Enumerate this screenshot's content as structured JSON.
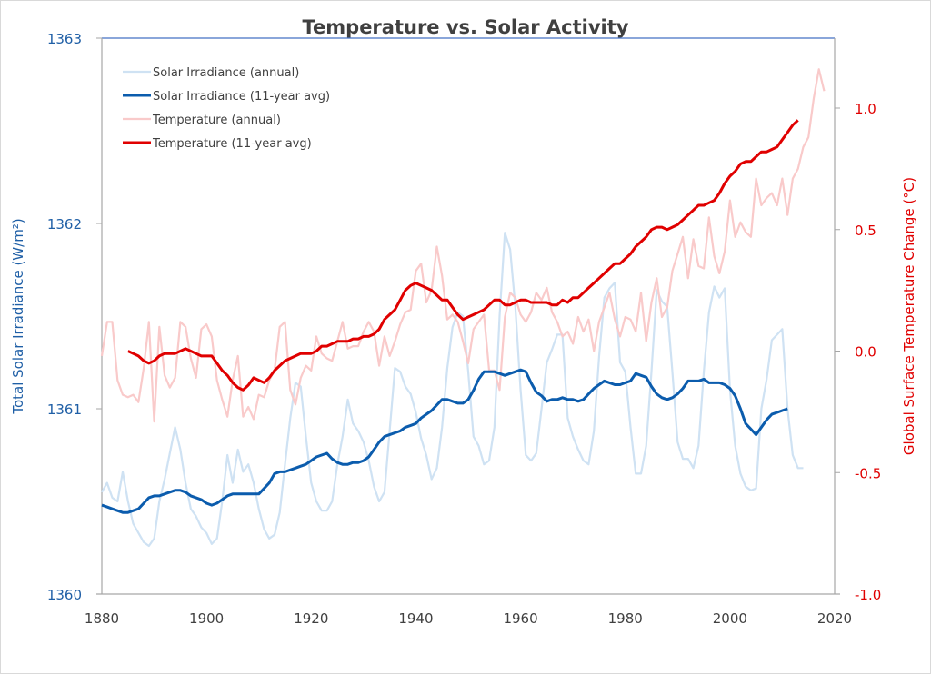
{
  "chart_data": {
    "type": "line",
    "title": "Temperature vs. Solar Activity",
    "xlabel": "",
    "ylabel_left": "Total Solar Irradiance (W/m²)",
    "ylabel_right": "Global Surface Temperature Change (°C)",
    "xlim": [
      1880,
      2020
    ],
    "ylim_left": [
      1360,
      1363
    ],
    "ylim_right": [
      -1.0,
      1.25
    ],
    "x_ticks": [
      "1880",
      "1900",
      "1920",
      "1940",
      "1960",
      "1980",
      "2000",
      "2020"
    ],
    "y_ticks_left": [
      "1360",
      "1361",
      "1362",
      "1363"
    ],
    "y_ticks_right": [
      "-1.0",
      "-0.5",
      "0.0",
      "0.5",
      "1.0"
    ],
    "grid": false,
    "legend_position": "top-left",
    "colors": {
      "solar_annual": "#cfe2f3",
      "solar_avg": "#0b5cad",
      "temp_annual": "#f9caca",
      "temp_avg": "#e00000",
      "left_axis_text": "#1f5fa6",
      "right_axis_text": "#e00000",
      "title_text": "#404040",
      "top_border": "#4472c4"
    },
    "series": [
      {
        "name": "Solar Irradiance (annual)",
        "axis": "left",
        "start_year": 1880,
        "values": [
          1360.55,
          1360.6,
          1360.52,
          1360.5,
          1360.66,
          1360.5,
          1360.38,
          1360.33,
          1360.28,
          1360.26,
          1360.3,
          1360.5,
          1360.62,
          1360.76,
          1360.9,
          1360.78,
          1360.6,
          1360.46,
          1360.42,
          1360.36,
          1360.33,
          1360.27,
          1360.3,
          1360.5,
          1360.75,
          1360.6,
          1360.78,
          1360.66,
          1360.7,
          1360.6,
          1360.46,
          1360.35,
          1360.3,
          1360.32,
          1360.44,
          1360.7,
          1360.95,
          1361.14,
          1361.12,
          1360.85,
          1360.6,
          1360.5,
          1360.45,
          1360.45,
          1360.5,
          1360.7,
          1360.85,
          1361.05,
          1360.92,
          1360.88,
          1360.82,
          1360.72,
          1360.58,
          1360.5,
          1360.55,
          1360.88,
          1361.22,
          1361.2,
          1361.12,
          1361.08,
          1360.98,
          1360.84,
          1360.75,
          1360.62,
          1360.68,
          1360.9,
          1361.22,
          1361.44,
          1361.52,
          1361.5,
          1361.2,
          1360.85,
          1360.8,
          1360.7,
          1360.72,
          1360.9,
          1361.5,
          1361.95,
          1361.86,
          1361.55,
          1361.1,
          1360.75,
          1360.72,
          1360.76,
          1361.0,
          1361.25,
          1361.32,
          1361.4,
          1361.4,
          1360.95,
          1360.85,
          1360.78,
          1360.72,
          1360.7,
          1360.88,
          1361.28,
          1361.6,
          1361.65,
          1361.68,
          1361.25,
          1361.2,
          1360.9,
          1360.65,
          1360.65,
          1360.8,
          1361.2,
          1361.64,
          1361.58,
          1361.55,
          1361.2,
          1360.82,
          1360.73,
          1360.73,
          1360.68,
          1360.8,
          1361.2,
          1361.52,
          1361.66,
          1361.6,
          1361.65,
          1361.1,
          1360.8,
          1360.65,
          1360.58,
          1360.56,
          1360.57,
          1361.0,
          1361.16,
          1361.37,
          1361.4,
          1361.43,
          1361.0,
          1360.75,
          1360.68,
          1360.68
        ]
      },
      {
        "name": "Solar Irradiance (11-year avg)",
        "axis": "left",
        "start_year": 1880,
        "values": [
          1360.48,
          1360.47,
          1360.46,
          1360.45,
          1360.44,
          1360.44,
          1360.45,
          1360.46,
          1360.49,
          1360.52,
          1360.53,
          1360.53,
          1360.54,
          1360.55,
          1360.56,
          1360.56,
          1360.55,
          1360.53,
          1360.52,
          1360.51,
          1360.49,
          1360.48,
          1360.49,
          1360.51,
          1360.53,
          1360.54,
          1360.54,
          1360.54,
          1360.54,
          1360.54,
          1360.54,
          1360.57,
          1360.6,
          1360.65,
          1360.66,
          1360.66,
          1360.67,
          1360.68,
          1360.69,
          1360.7,
          1360.72,
          1360.74,
          1360.75,
          1360.76,
          1360.73,
          1360.71,
          1360.7,
          1360.7,
          1360.71,
          1360.71,
          1360.72,
          1360.74,
          1360.78,
          1360.82,
          1360.85,
          1360.86,
          1360.87,
          1360.88,
          1360.9,
          1360.91,
          1360.92,
          1360.95,
          1360.97,
          1360.99,
          1361.02,
          1361.05,
          1361.05,
          1361.04,
          1361.03,
          1361.03,
          1361.05,
          1361.1,
          1361.16,
          1361.2,
          1361.2,
          1361.2,
          1361.19,
          1361.18,
          1361.19,
          1361.2,
          1361.21,
          1361.2,
          1361.14,
          1361.09,
          1361.07,
          1361.04,
          1361.05,
          1361.05,
          1361.06,
          1361.05,
          1361.05,
          1361.04,
          1361.05,
          1361.08,
          1361.11,
          1361.13,
          1361.15,
          1361.14,
          1361.13,
          1361.13,
          1361.14,
          1361.15,
          1361.19,
          1361.18,
          1361.17,
          1361.12,
          1361.08,
          1361.06,
          1361.05,
          1361.06,
          1361.08,
          1361.11,
          1361.15,
          1361.15,
          1361.15,
          1361.16,
          1361.14,
          1361.14,
          1361.14,
          1361.13,
          1361.11,
          1361.07,
          1361.0,
          1360.92,
          1360.89,
          1360.86,
          1360.9,
          1360.94,
          1360.97,
          1360.98,
          1360.99,
          1361.0
        ]
      },
      {
        "name": "Temperature (annual)",
        "axis": "right",
        "start_year": 1880,
        "values": [
          -0.02,
          0.12,
          0.12,
          -0.12,
          -0.18,
          -0.19,
          -0.18,
          -0.21,
          -0.07,
          0.12,
          -0.29,
          0.1,
          -0.1,
          -0.15,
          -0.11,
          0.12,
          0.1,
          -0.03,
          -0.11,
          0.09,
          0.11,
          0.06,
          -0.12,
          -0.2,
          -0.27,
          -0.12,
          -0.02,
          -0.27,
          -0.23,
          -0.28,
          -0.18,
          -0.19,
          -0.12,
          -0.08,
          0.1,
          0.12,
          -0.16,
          -0.22,
          -0.11,
          -0.06,
          -0.08,
          0.06,
          -0.01,
          -0.03,
          -0.04,
          0.04,
          0.12,
          0.01,
          0.02,
          0.02,
          0.08,
          0.12,
          0.08,
          -0.06,
          0.06,
          -0.02,
          0.04,
          0.11,
          0.16,
          0.17,
          0.33,
          0.36,
          0.2,
          0.25,
          0.43,
          0.31,
          0.13,
          0.15,
          0.12,
          0.04,
          -0.05,
          0.09,
          0.12,
          0.15,
          -0.08,
          -0.08,
          -0.16,
          0.14,
          0.24,
          0.22,
          0.15,
          0.12,
          0.16,
          0.24,
          0.21,
          0.26,
          0.16,
          0.12,
          0.06,
          0.08,
          0.03,
          0.14,
          0.08,
          0.13,
          0.0,
          0.12,
          0.18,
          0.24,
          0.13,
          0.06,
          0.14,
          0.13,
          0.08,
          0.24,
          0.04,
          0.2,
          0.3,
          0.14,
          0.18,
          0.33,
          0.4,
          0.47,
          0.3,
          0.46,
          0.35,
          0.34,
          0.55,
          0.39,
          0.32,
          0.41,
          0.62,
          0.47,
          0.53,
          0.49,
          0.47,
          0.71,
          0.6,
          0.63,
          0.65,
          0.6,
          0.71,
          0.56,
          0.71,
          0.75,
          0.84,
          0.88,
          1.04,
          1.16,
          1.07
        ]
      },
      {
        "name": "Temperature (11-year avg)",
        "axis": "right",
        "start_year": 1885,
        "values": [
          0.0,
          -0.01,
          -0.02,
          -0.04,
          -0.05,
          -0.04,
          -0.02,
          -0.01,
          -0.01,
          -0.01,
          0.0,
          0.01,
          0.0,
          -0.01,
          -0.02,
          -0.02,
          -0.02,
          -0.05,
          -0.08,
          -0.1,
          -0.13,
          -0.15,
          -0.16,
          -0.14,
          -0.11,
          -0.12,
          -0.13,
          -0.11,
          -0.08,
          -0.06,
          -0.04,
          -0.03,
          -0.02,
          -0.01,
          -0.01,
          -0.01,
          0.0,
          0.02,
          0.02,
          0.03,
          0.04,
          0.04,
          0.04,
          0.05,
          0.05,
          0.06,
          0.06,
          0.07,
          0.09,
          0.13,
          0.15,
          0.17,
          0.21,
          0.25,
          0.27,
          0.28,
          0.27,
          0.26,
          0.25,
          0.23,
          0.21,
          0.21,
          0.18,
          0.15,
          0.13,
          0.14,
          0.15,
          0.16,
          0.17,
          0.19,
          0.21,
          0.21,
          0.19,
          0.19,
          0.2,
          0.21,
          0.21,
          0.2,
          0.2,
          0.2,
          0.2,
          0.19,
          0.19,
          0.21,
          0.2,
          0.22,
          0.22,
          0.24,
          0.26,
          0.28,
          0.3,
          0.32,
          0.34,
          0.36,
          0.36,
          0.38,
          0.4,
          0.43,
          0.45,
          0.47,
          0.5,
          0.51,
          0.51,
          0.5,
          0.51,
          0.52,
          0.54,
          0.56,
          0.58,
          0.6,
          0.6,
          0.61,
          0.62,
          0.65,
          0.69,
          0.72,
          0.74,
          0.77,
          0.78,
          0.78,
          0.8,
          0.82,
          0.82,
          0.83,
          0.84,
          0.87,
          0.9,
          0.93,
          0.95
        ]
      }
    ]
  }
}
